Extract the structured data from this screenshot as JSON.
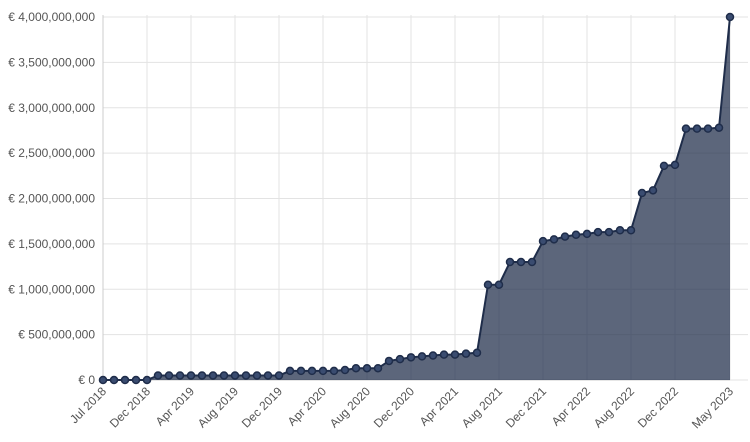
{
  "chart_data": {
    "type": "area",
    "categories": [
      "Jul 2018",
      null,
      null,
      null,
      "Dec 2018",
      null,
      null,
      null,
      "Apr 2019",
      null,
      null,
      null,
      "Aug 2019",
      null,
      null,
      null,
      "Dec 2019",
      null,
      null,
      null,
      "Apr 2020",
      null,
      null,
      null,
      "Aug 2020",
      null,
      null,
      null,
      "Dec 2020",
      null,
      null,
      null,
      "Apr 2021",
      null,
      null,
      null,
      "Aug 2021",
      null,
      null,
      null,
      "Dec 2021",
      null,
      null,
      null,
      "Apr 2022",
      null,
      null,
      null,
      "Aug 2022",
      null,
      null,
      null,
      "Dec 2022",
      null,
      null,
      null,
      null,
      "May 2023"
    ],
    "values": [
      0,
      0,
      0,
      0,
      0,
      50000000,
      50000000,
      50000000,
      50000000,
      50000000,
      50000000,
      50000000,
      50000000,
      50000000,
      50000000,
      50000000,
      50000000,
      100000000,
      100000000,
      100000000,
      100000000,
      100000000,
      110000000,
      130000000,
      130000000,
      130000000,
      210000000,
      230000000,
      250000000,
      260000000,
      270000000,
      280000000,
      280000000,
      290000000,
      300000000,
      1050000000,
      1050000000,
      1300000000,
      1300000000,
      1300000000,
      1530000000,
      1550000000,
      1580000000,
      1600000000,
      1610000000,
      1630000000,
      1630000000,
      1650000000,
      1650000000,
      2060000000,
      2090000000,
      2360000000,
      2370000000,
      2770000000,
      2770000000,
      2770000000,
      2780000000,
      4000000000
    ],
    "color": "#1f2d4a",
    "ylim": [
      0,
      4000000000
    ],
    "yticks": [
      {
        "value": 0,
        "label": "€ 0"
      },
      {
        "value": 500000000,
        "label": "€ 500,000,000"
      },
      {
        "value": 1000000000,
        "label": "€ 1,000,000,000"
      },
      {
        "value": 1500000000,
        "label": "€ 1,500,000,000"
      },
      {
        "value": 2000000000,
        "label": "€ 2,000,000,000"
      },
      {
        "value": 2500000000,
        "label": "€ 2,500,000,000"
      },
      {
        "value": 3000000000,
        "label": "€ 3,000,000,000"
      },
      {
        "value": 3500000000,
        "label": "€ 3,500,000,000"
      },
      {
        "value": 4000000000,
        "label": "€ 4,000,000,000"
      }
    ],
    "grid": true
  }
}
